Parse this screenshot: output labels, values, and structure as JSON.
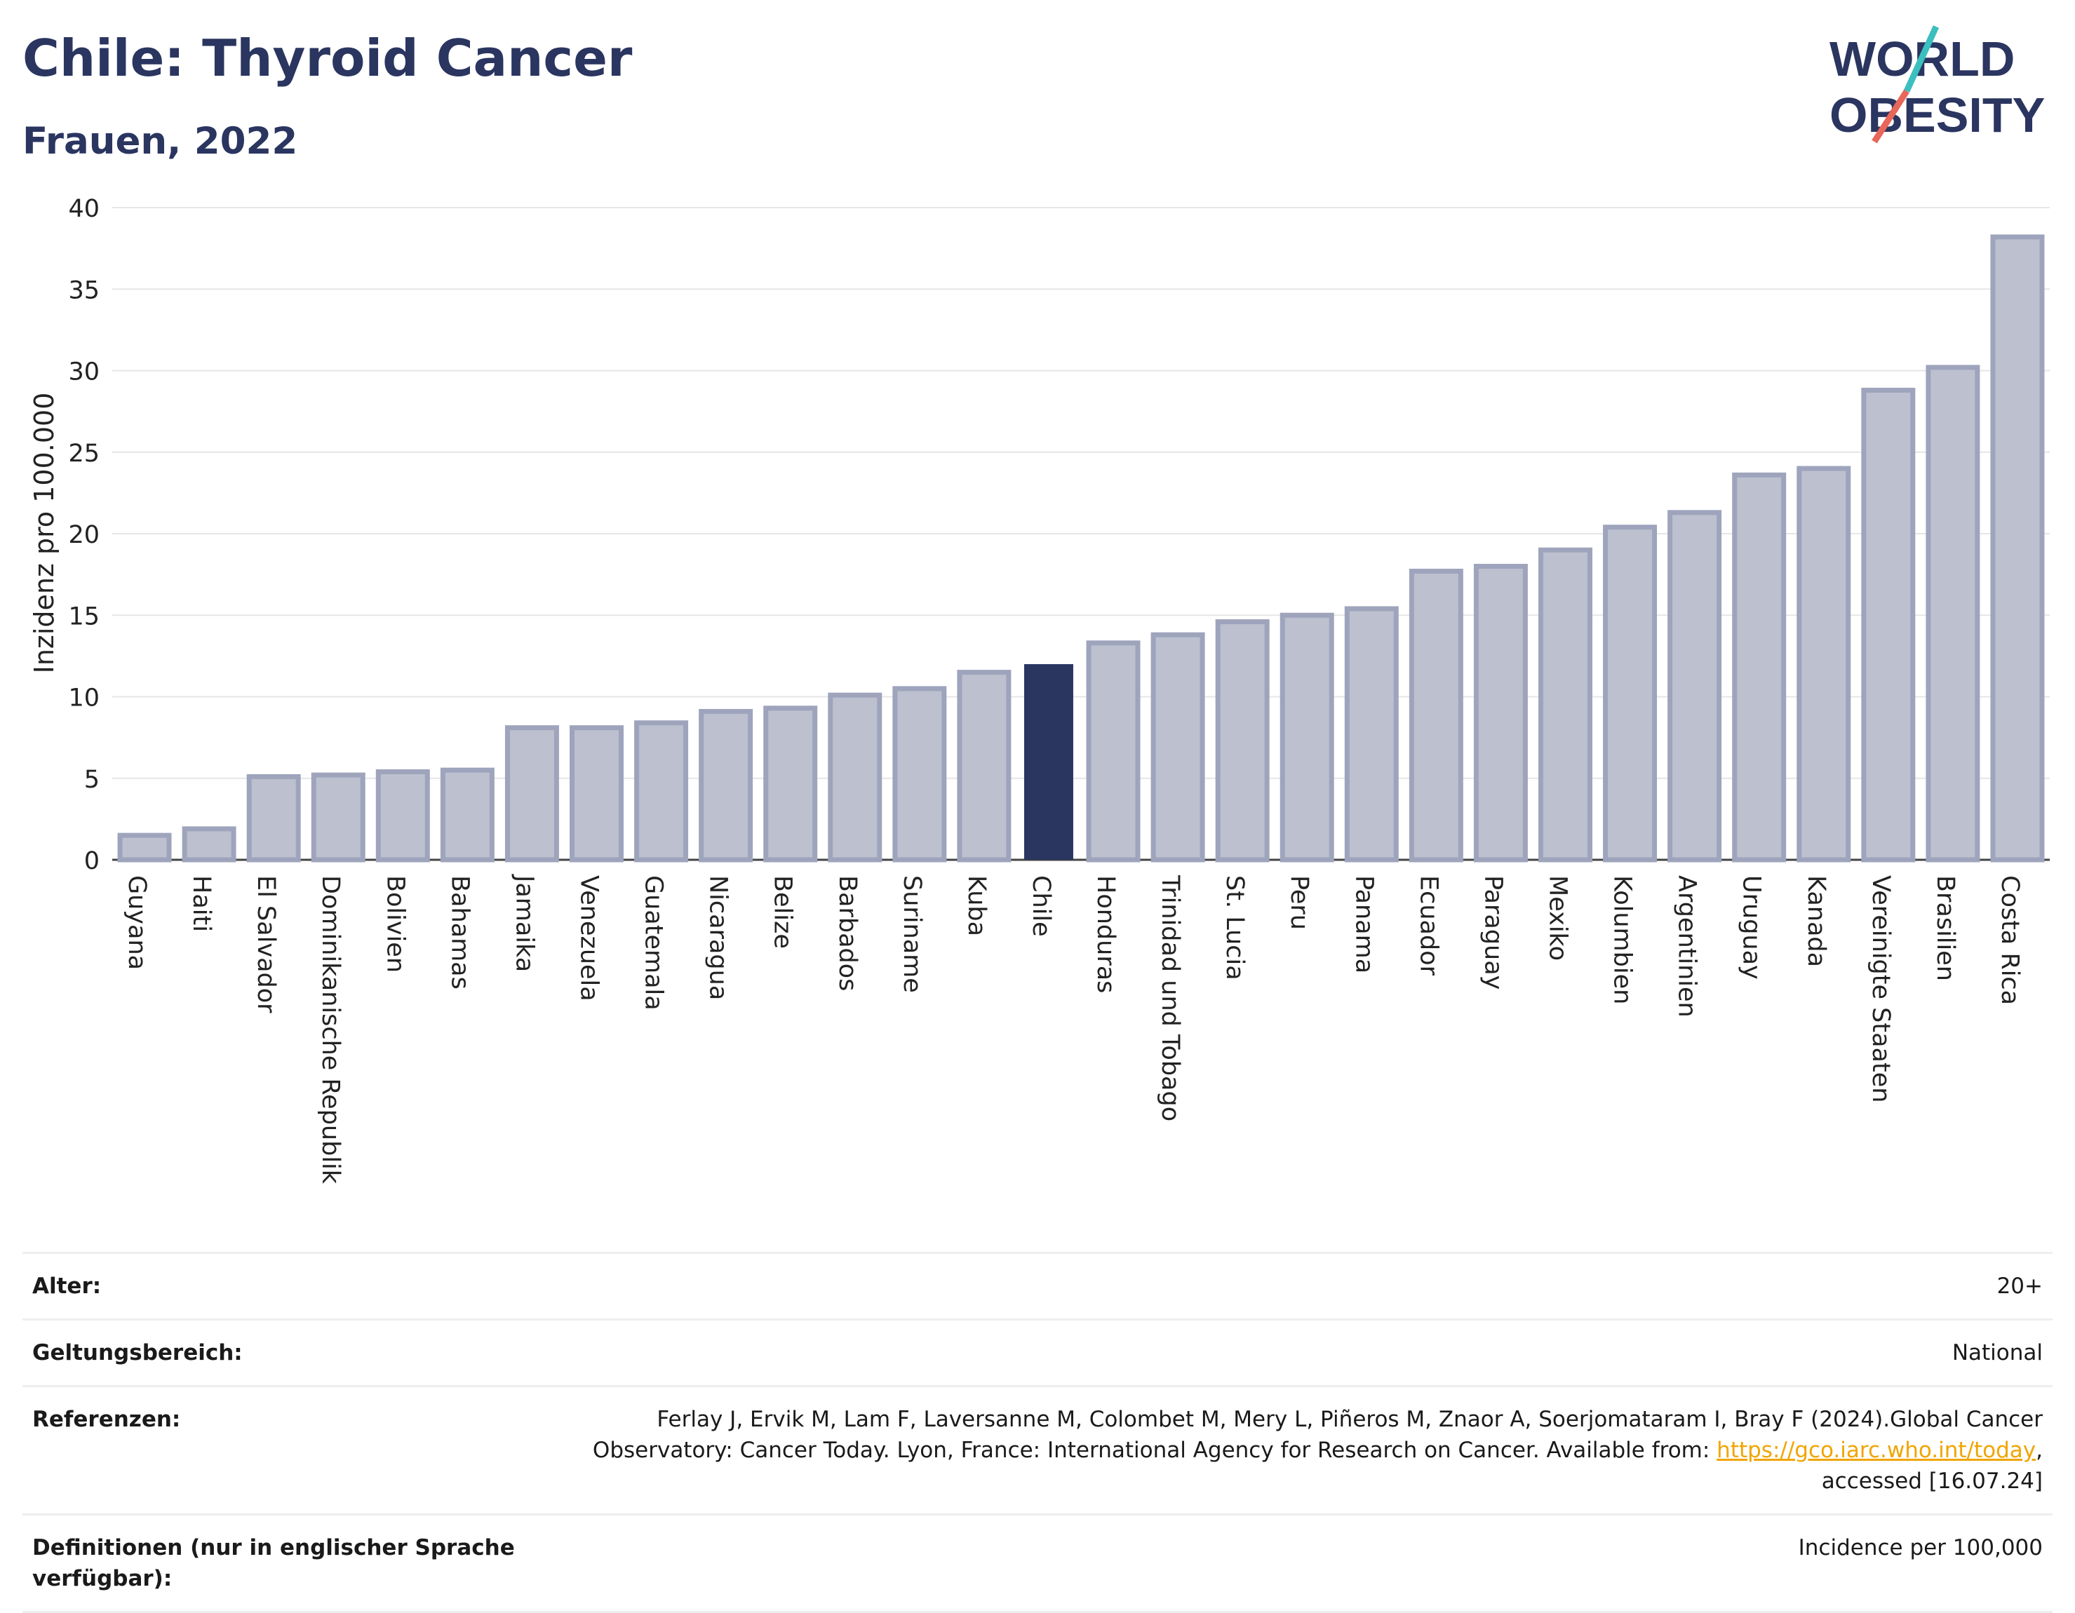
{
  "header": {
    "title": "Chile: Thyroid Cancer",
    "subtitle": "Frauen, 2022"
  },
  "logo": {
    "line1": "WORLD",
    "line2": "OBESITY",
    "colors": {
      "text": "#2a3560",
      "slash_teal": "#3bbfbf",
      "slash_red": "#e8665a"
    }
  },
  "chart_data": {
    "type": "bar",
    "title": "",
    "xlabel": "",
    "ylabel": "Inzidenz pro 100.000",
    "ylim": [
      0,
      40
    ],
    "yticks": [
      0,
      5,
      10,
      15,
      20,
      25,
      30,
      35,
      40
    ],
    "grid": true,
    "highlight": "Chile",
    "colors": {
      "bar": "#bcc0cf",
      "bar_border": "#9ea4bc",
      "highlight": "#2a3560",
      "grid": "#e6e6e6"
    },
    "categories": [
      "Guyana",
      "Haiti",
      "El Salvador",
      "Dominikanische Republik",
      "Bolivien",
      "Bahamas",
      "Jamaika",
      "Venezuela",
      "Guatemala",
      "Nicaragua",
      "Belize",
      "Barbados",
      "Suriname",
      "Kuba",
      "Chile",
      "Honduras",
      "Trinidad und Tobago",
      "St. Lucia",
      "Peru",
      "Panama",
      "Ecuador",
      "Paraguay",
      "Mexiko",
      "Kolumbien",
      "Argentinien",
      "Uruguay",
      "Kanada",
      "Vereinigte Staaten",
      "Brasilien",
      "Costa Rica"
    ],
    "values": [
      1.5,
      1.9,
      5.1,
      5.2,
      5.4,
      5.5,
      8.1,
      8.1,
      8.4,
      9.1,
      9.3,
      10.1,
      10.5,
      11.5,
      12.0,
      13.3,
      13.8,
      14.6,
      15.0,
      15.4,
      17.7,
      18.0,
      19.0,
      20.4,
      21.3,
      23.6,
      24.0,
      28.8,
      30.2,
      38.2
    ]
  },
  "meta": {
    "age_label": "Alter:",
    "age_value": "20+",
    "scope_label": "Geltungsbereich:",
    "scope_value": "National",
    "ref_label": "Referenzen:",
    "ref_text_1": "Ferlay J, Ervik M, Lam F, Laversanne M, Colombet M, Mery L, Piñeros M, Znaor A, Soerjomataram I, Bray F (2024).Global Cancer Observatory: Cancer Today. Lyon, France: International Agency for Research on Cancer. Available from: ",
    "ref_link": "https://gco.iarc.who.int/today",
    "ref_text_2": ", accessed [16.07.24]",
    "def_label": "Definitionen (nur in englischer Sprache verfügbar):",
    "def_value": "Incidence per 100,000"
  }
}
